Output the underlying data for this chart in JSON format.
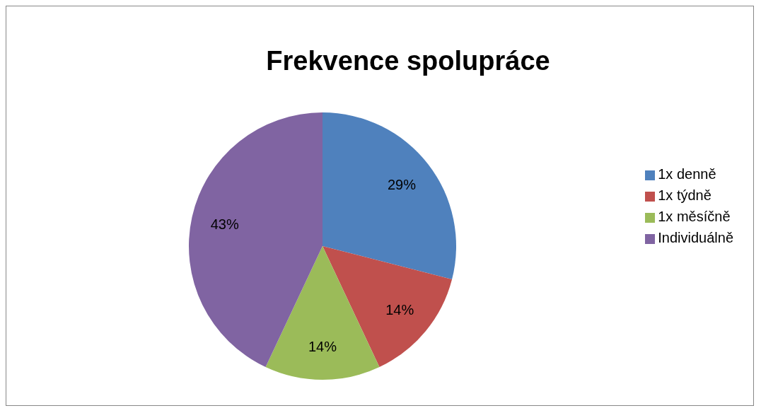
{
  "chart_data": {
    "type": "pie",
    "title": "Frekvence spolupráce",
    "categories": [
      "1x denně",
      "1x týdně",
      "1x měsíčně",
      "Individuálně"
    ],
    "values": [
      29,
      14,
      14,
      43
    ],
    "colors": [
      "#4f81bd",
      "#c0504d",
      "#9bbb59",
      "#8064a2"
    ],
    "value_labels": [
      "29%",
      "14%",
      "14%",
      "43%"
    ],
    "legend": "right"
  }
}
